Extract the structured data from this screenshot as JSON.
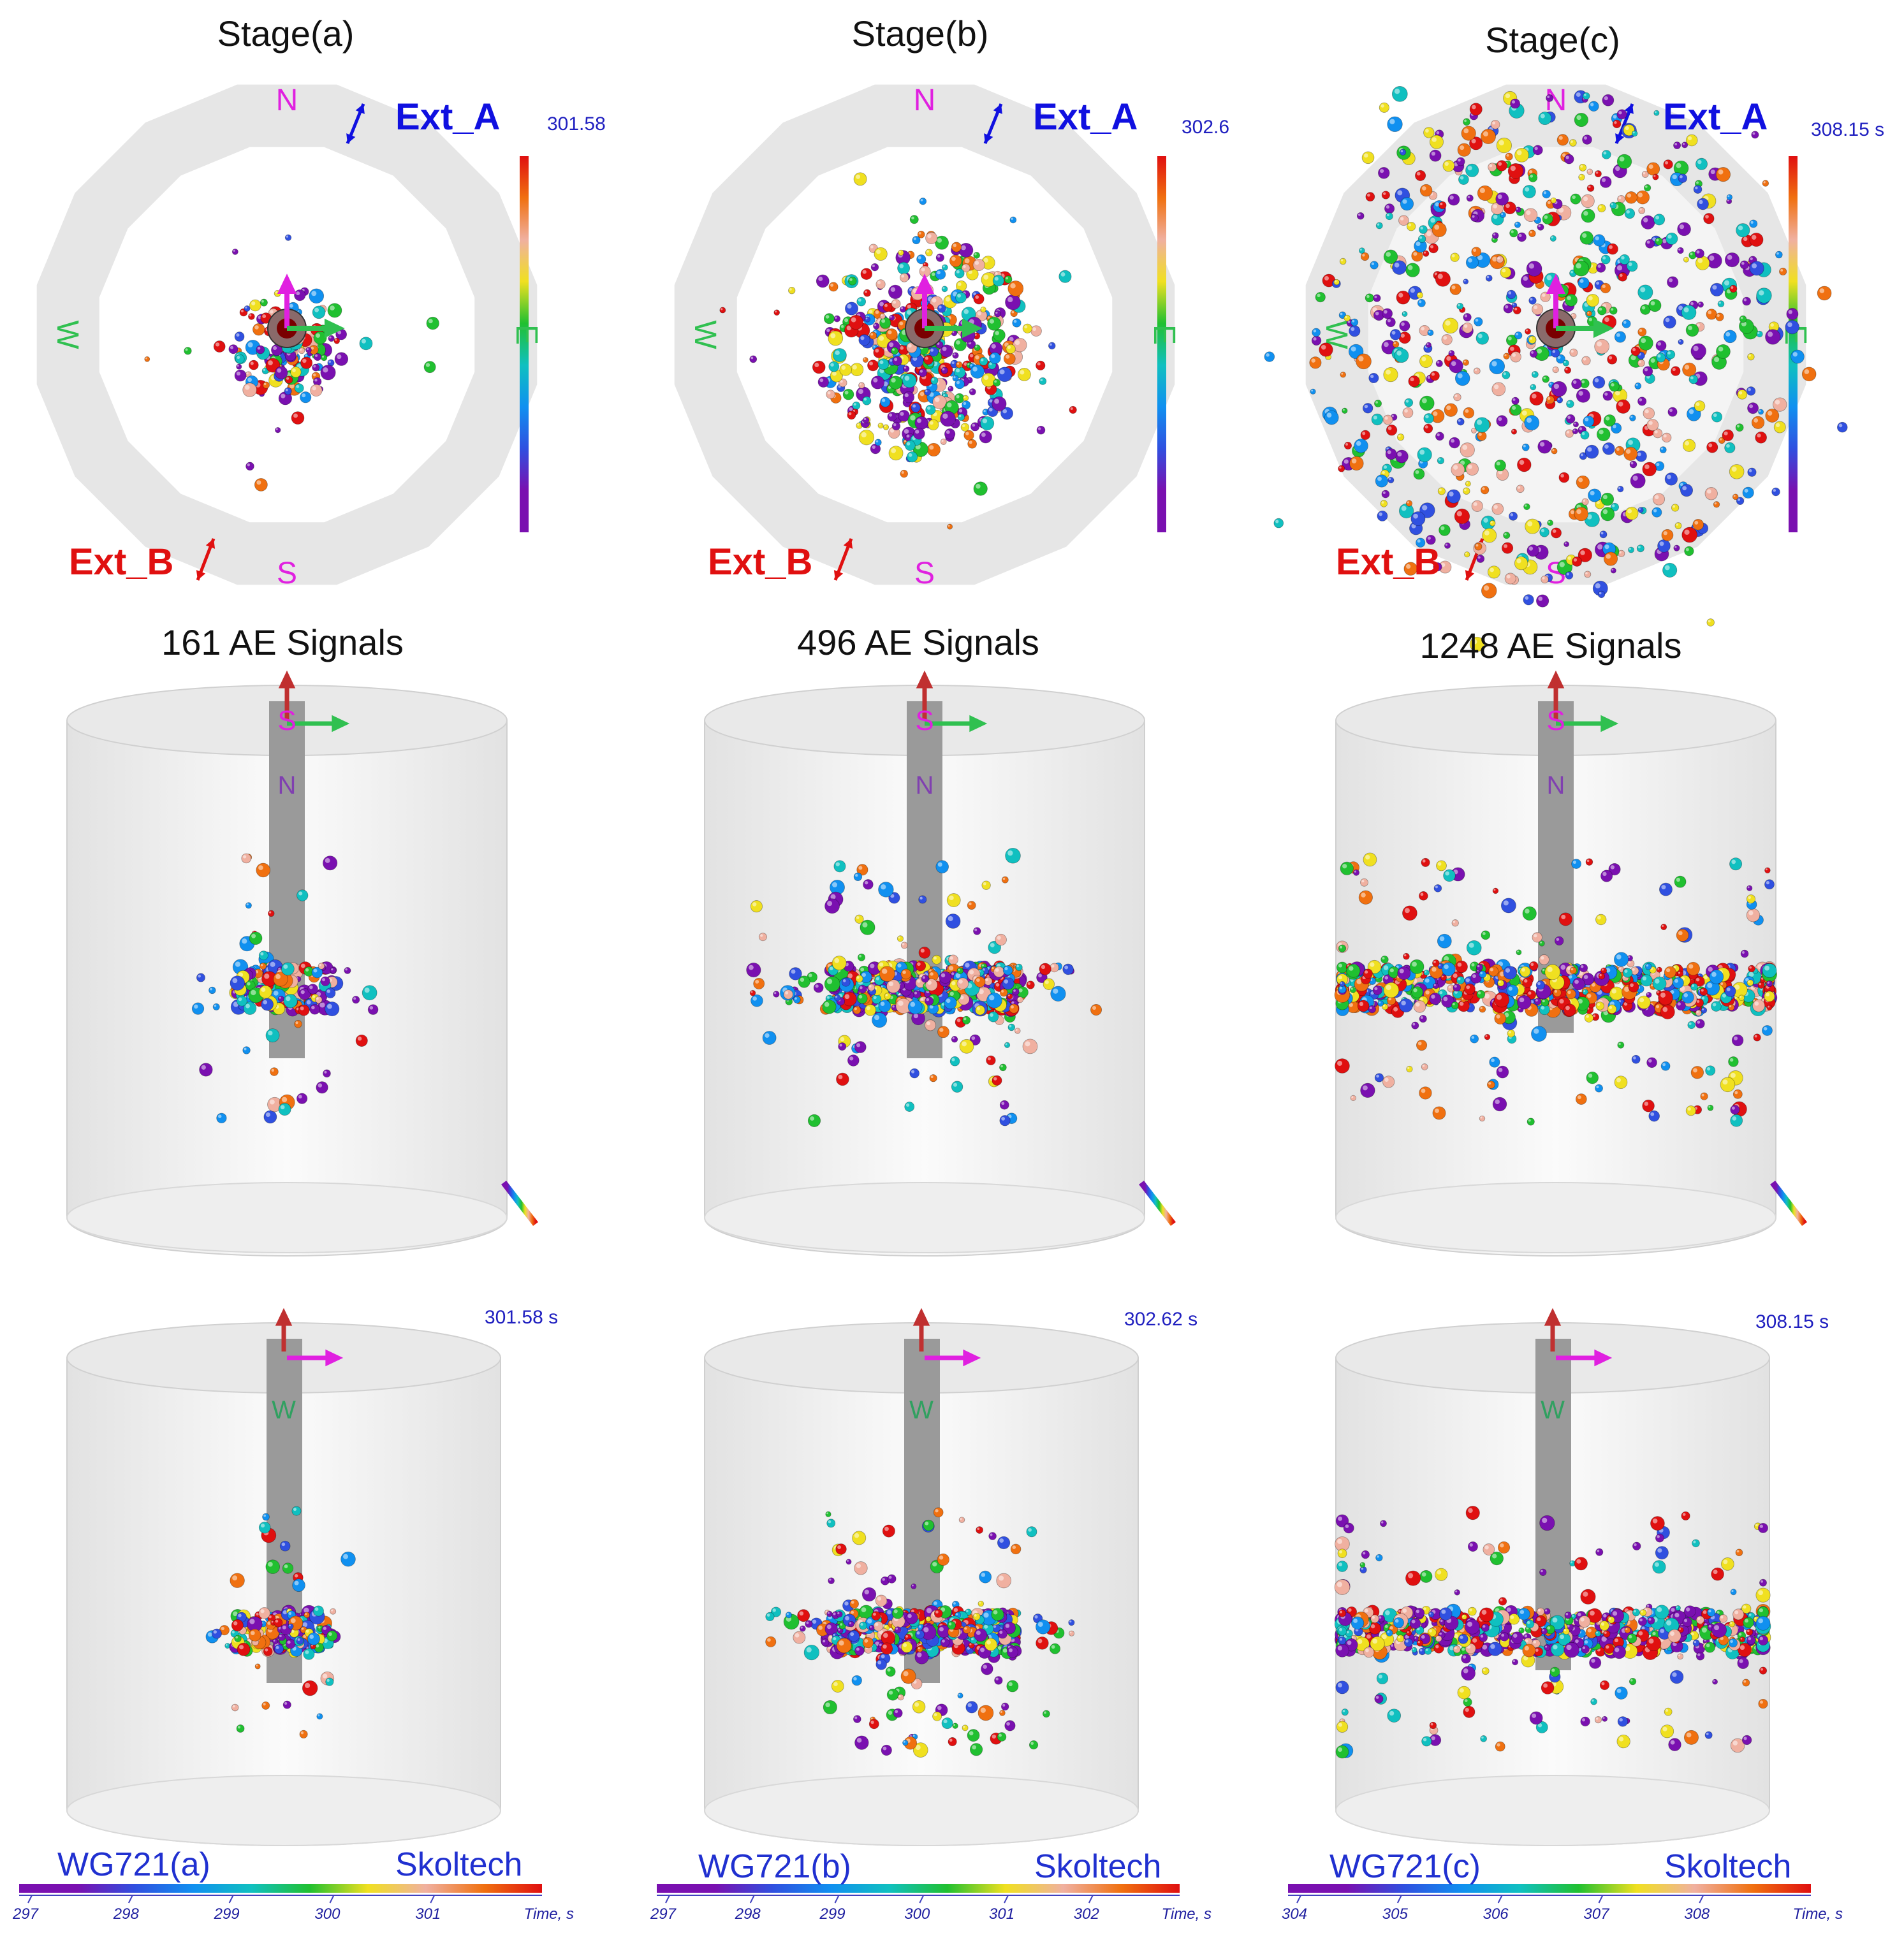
{
  "stages": [
    {
      "stage_title": "Stage(a)",
      "signals_label": "161 AE Signals",
      "top_time": "301.58",
      "iso_time": "301.58  s",
      "ext_a": "Ext_A",
      "ext_b": "Ext_B",
      "compass": {
        "n": "N",
        "s": "S",
        "e": "E",
        "w": "W"
      },
      "side_labels": {
        "top": "S",
        "mid": "N"
      },
      "iso_label": "W",
      "watermark_left": "WG721(a)",
      "watermark_right": "Skoltech",
      "time_ticks": [
        "297",
        "298",
        "299",
        "300",
        "301"
      ],
      "time_axis_label": "Time, s",
      "signal_count": 161
    },
    {
      "stage_title": "Stage(b)",
      "signals_label": "496 AE Signals",
      "top_time": "302.6",
      "iso_time": "302.62  s",
      "ext_a": "Ext_A",
      "ext_b": "Ext_B",
      "compass": {
        "n": "N",
        "s": "S",
        "e": "E",
        "w": "W"
      },
      "side_labels": {
        "top": "S",
        "mid": "N"
      },
      "iso_label": "W",
      "watermark_left": "WG721(b)",
      "watermark_right": "Skoltech",
      "time_ticks": [
        "297",
        "298",
        "299",
        "300",
        "301",
        "302"
      ],
      "time_axis_label": "Time, s",
      "signal_count": 496
    },
    {
      "stage_title": "Stage(c)",
      "signals_label": "1248 AE Signals",
      "top_time": "308.15  s",
      "iso_time": "308.15  s",
      "ext_a": "Ext_A",
      "ext_b": "Ext_B",
      "compass": {
        "n": "N",
        "s": "S",
        "e": "E",
        "w": "W"
      },
      "side_labels": {
        "top": "S",
        "mid": "N"
      },
      "iso_label": "W",
      "watermark_left": "WG721(c)",
      "watermark_right": "Skoltech",
      "time_ticks": [
        "304",
        "305",
        "306",
        "307",
        "308"
      ],
      "time_axis_label": "Time, s",
      "signal_count": 1248
    }
  ],
  "colors": {
    "ext_a": "#1010e0",
    "ext_b": "#e01010",
    "compass_ns": "#e020e0",
    "compass_ew": "#30c050",
    "ring": "#e6e6e6",
    "cylinder": "#ececec",
    "well": "#9a9a9a",
    "brand": "#2030d0",
    "time_palette": [
      "#7a10b0",
      "#7a10b0",
      "#3050e0",
      "#1090f0",
      "#10c0c0",
      "#20c030",
      "#f0e020",
      "#f0b0a0",
      "#f07010",
      "#e01010"
    ]
  }
}
